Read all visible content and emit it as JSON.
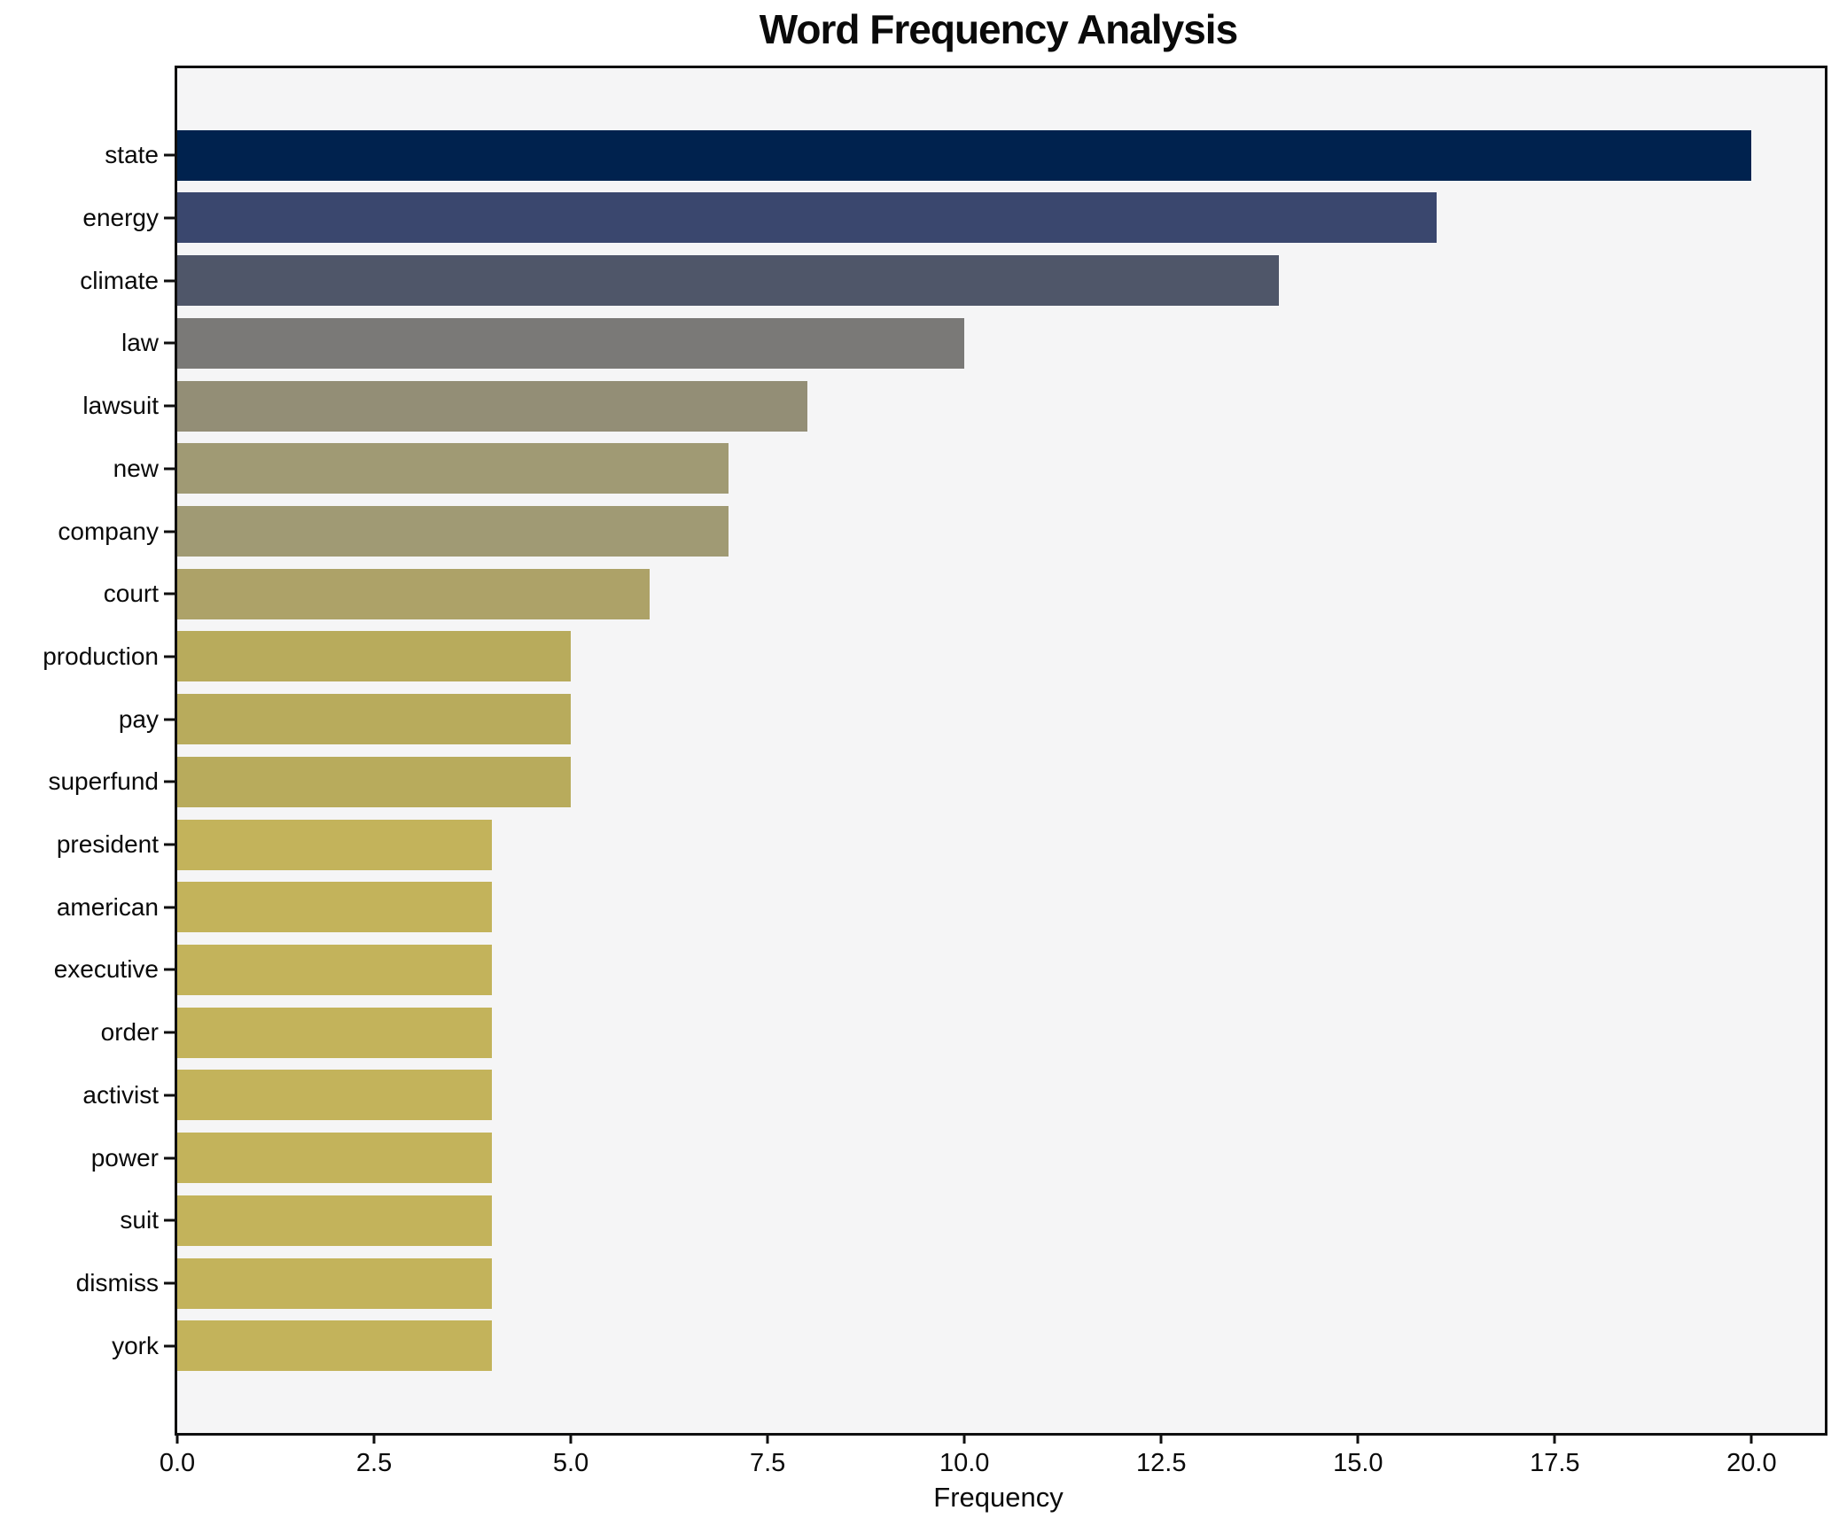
{
  "figure": {
    "background": "#ffffff",
    "plot_background": "#f5f5f6",
    "axis_color": "#0f0f0f",
    "text_color": "#0a0a0a"
  },
  "chart_data": {
    "type": "bar",
    "orientation": "horizontal",
    "title": "Word Frequency Analysis",
    "xlabel": "Frequency",
    "ylabel": "",
    "categories": [
      "state",
      "energy",
      "climate",
      "law",
      "lawsuit",
      "new",
      "company",
      "court",
      "production",
      "pay",
      "superfund",
      "president",
      "american",
      "executive",
      "order",
      "activist",
      "power",
      "suit",
      "dismiss",
      "york"
    ],
    "values": [
      20,
      16,
      14,
      10,
      8,
      7,
      7,
      6,
      5,
      5,
      5,
      4,
      4,
      4,
      4,
      4,
      4,
      4,
      4,
      4
    ],
    "bar_colors": [
      "#00224e",
      "#3a476e",
      "#4f5669",
      "#7a7977",
      "#938e76",
      "#a09a74",
      "#a09a74",
      "#ada268",
      "#b8ab5c",
      "#b8ab5c",
      "#b8ab5c",
      "#c3b35b",
      "#c3b35b",
      "#c3b35b",
      "#c3b35b",
      "#c3b35b",
      "#c3b35b",
      "#c3b35b",
      "#c3b35b",
      "#c3b35b"
    ],
    "xticks": [
      "0.0",
      "2.5",
      "5.0",
      "7.5",
      "10.0",
      "12.5",
      "15.0",
      "17.5",
      "20.0"
    ],
    "xtick_values": [
      0,
      2.5,
      5,
      7.5,
      10,
      12.5,
      15,
      17.5,
      20
    ],
    "xlim": [
      0,
      20.93
    ],
    "grid": false,
    "legend": null
  }
}
